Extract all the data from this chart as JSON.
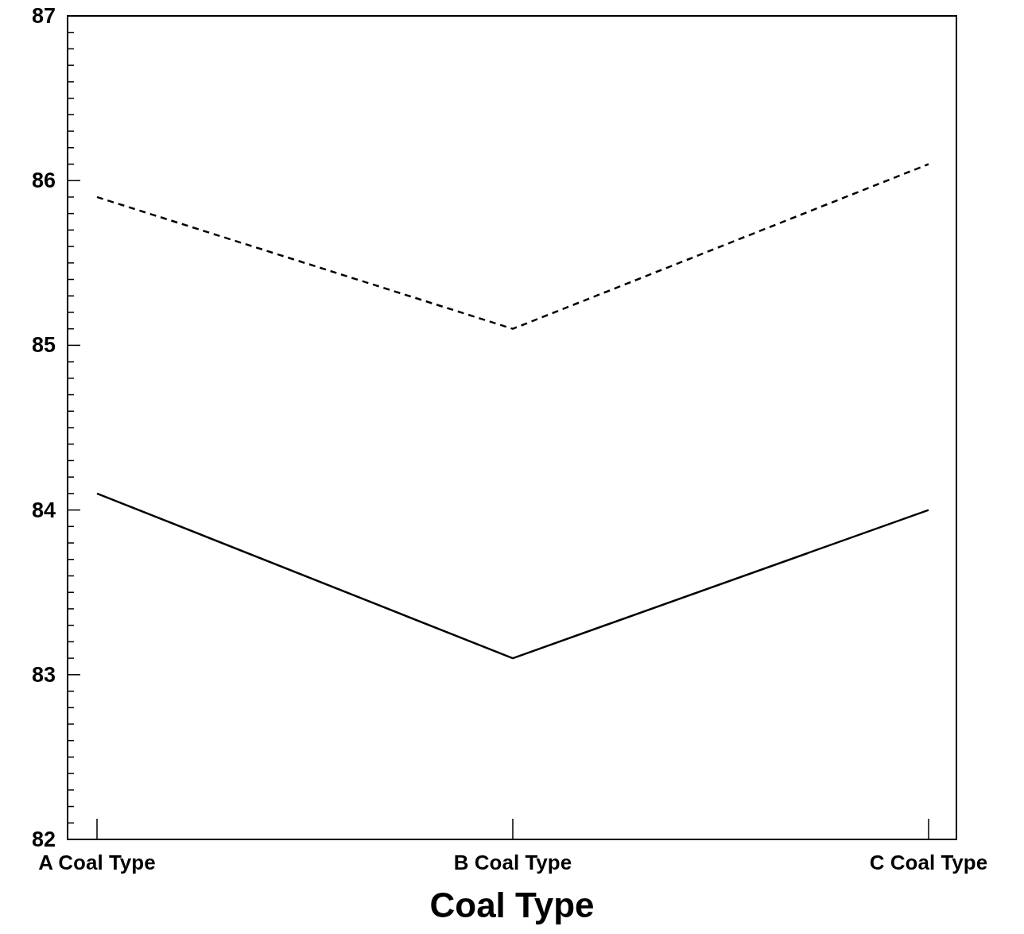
{
  "chart_data": {
    "type": "line",
    "xlabel": "Coal Type",
    "categories": [
      "A Coal Type",
      "B Coal Type",
      "C Coal Type"
    ],
    "series": [
      {
        "color": "#000000",
        "line_style": "dashed",
        "values": [
          85.9,
          85.1,
          86.1
        ]
      },
      {
        "color": "#000000",
        "line_style": "solid",
        "values": [
          84.1,
          83.1,
          84.0
        ]
      }
    ],
    "ylim": [
      82,
      87
    ],
    "yticks": [
      82,
      {
        "value": 82.1,
        "label": null
      },
      {
        "value": 82.2,
        "label": null
      },
      {
        "value": 82.3,
        "label": null
      },
      {
        "value": 82.4,
        "label": null
      },
      {
        "value": 82.5,
        "label": null
      },
      {
        "value": 82.6,
        "label": null
      },
      {
        "value": 82.7,
        "label": null
      },
      {
        "value": 82.8,
        "label": null
      },
      {
        "value": 82.9,
        "label": null
      },
      83,
      {
        "value": 83.1,
        "label": null
      },
      {
        "value": 83.2,
        "label": null
      },
      {
        "value": 83.3,
        "label": null
      },
      {
        "value": 83.4,
        "label": null
      },
      {
        "value": 83.5,
        "label": null
      },
      {
        "value": 83.6,
        "label": null
      },
      {
        "value": 83.7,
        "label": null
      },
      {
        "value": 83.8,
        "label": null
      },
      {
        "value": 83.9,
        "label": null
      },
      84,
      {
        "value": 84.1,
        "label": null
      },
      {
        "value": 84.2,
        "label": null
      },
      {
        "value": 84.3,
        "label": null
      },
      {
        "value": 84.4,
        "label": null
      },
      {
        "value": 84.5,
        "label": null
      },
      {
        "value": 84.6,
        "label": null
      },
      {
        "value": 84.7,
        "label": null
      },
      {
        "value": 84.8,
        "label": null
      },
      {
        "value": 84.9,
        "label": null
      },
      85,
      {
        "value": 85.1,
        "label": null
      },
      {
        "value": 85.2,
        "label": null
      },
      {
        "value": 85.3,
        "label": null
      },
      {
        "value": 85.4,
        "label": null
      },
      {
        "value": 85.5,
        "label": null
      },
      {
        "value": 85.6,
        "label": null
      },
      {
        "value": 85.7,
        "label": null
      },
      {
        "value": 85.8,
        "label": null
      },
      {
        "value": 85.9,
        "label": null
      },
      86,
      {
        "value": 86.1,
        "label": null
      },
      {
        "value": 86.2,
        "label": null
      },
      {
        "value": 86.3,
        "label": null
      },
      {
        "value": 86.4,
        "label": null
      },
      {
        "value": 86.5,
        "label": null
      },
      {
        "value": 86.6,
        "label": null
      },
      {
        "value": 86.7,
        "label": null
      },
      {
        "value": 86.8,
        "label": null
      },
      {
        "value": 86.9,
        "label": null
      },
      87
    ],
    "marker": "none"
  }
}
